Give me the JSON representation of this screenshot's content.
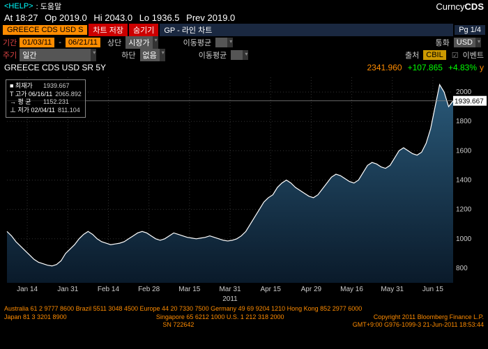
{
  "help": {
    "link": "<HELP>",
    "text": ": 도움말"
  },
  "brand": {
    "pre": "Curncy",
    "bold": "CDS"
  },
  "ohlc": {
    "time": "At 18:27",
    "op": "Op 2019.0",
    "hi": "Hi 2043.0",
    "lo": "Lo 1936.5",
    "prev": "Prev 2019.0"
  },
  "row3": {
    "ticker": "GREECE CDS USD S",
    "save": "차트 저장",
    "hide": "숨기기",
    "gp": "GP - 라인 차트",
    "pg": "Pg 1/4"
  },
  "f1": {
    "l1": "기간",
    "d1": "01/03/11",
    "d2": "06/21/11",
    "l2": "상단",
    "v2": "시장가",
    "l3": "이동평균",
    "l4": "통화",
    "v4": "USD"
  },
  "f2": {
    "l1": "주기",
    "v1": "일간",
    "l2": "하단",
    "v2": "없음",
    "l3": "이동평균",
    "l4": "출처",
    "v4": "CBIL",
    "ev": "이벤트"
  },
  "title": {
    "name": "GREECE CDS USD SR 5Y",
    "price": "2341.960",
    "chg": "+107.865",
    "pct": "+4.83%",
    "sfx": "y"
  },
  "legend": {
    "r1a": "■ 최재가",
    "r1b": "1939.667",
    "r2a": "T 고가 06/16/11",
    "r2b": "2065.892",
    "r3a": "→ 평     균",
    "r3b": "1152.231",
    "r4a": "⊥ 저가 02/04/11",
    "r4b": "811.104"
  },
  "chart": {
    "bg": "#000000",
    "grid": "#333333",
    "line": "#ffffff",
    "fill_top": "#2a5a7a",
    "fill_bottom": "#0a1a2a",
    "track_line": "#888888",
    "x_labels": [
      "Jan 14",
      "Jan 31",
      "Feb 14",
      "Feb 28",
      "Mar 15",
      "Mar 31",
      "Apr 15",
      "Apr 29",
      "May 16",
      "May 31",
      "Jun 15"
    ],
    "x_year": "2011",
    "y_labels": [
      "800",
      "1000",
      "1200",
      "1400",
      "1600",
      "1800",
      "2000"
    ],
    "y_min": 700,
    "y_max": 2100,
    "track_label": "1939.667",
    "data": [
      1050,
      1020,
      980,
      950,
      920,
      890,
      860,
      840,
      830,
      820,
      815,
      825,
      850,
      900,
      930,
      960,
      1000,
      1030,
      1050,
      1030,
      1000,
      980,
      970,
      960,
      965,
      970,
      980,
      1000,
      1020,
      1040,
      1050,
      1040,
      1020,
      1000,
      990,
      1000,
      1020,
      1040,
      1030,
      1020,
      1010,
      1005,
      1000,
      1005,
      1010,
      1020,
      1010,
      1000,
      990,
      985,
      990,
      1000,
      1020,
      1050,
      1100,
      1150,
      1200,
      1250,
      1280,
      1300,
      1350,
      1380,
      1400,
      1380,
      1350,
      1330,
      1310,
      1290,
      1280,
      1300,
      1340,
      1380,
      1420,
      1440,
      1430,
      1410,
      1390,
      1380,
      1400,
      1450,
      1500,
      1520,
      1510,
      1490,
      1480,
      1500,
      1550,
      1600,
      1620,
      1600,
      1580,
      1570,
      1590,
      1650,
      1750,
      1900,
      2050,
      2000,
      1900,
      1940
    ]
  },
  "footer": {
    "l1": "Australia 61 2 9777 8600 Brazil 5511 3048 4500 Europe 44 20 7330 7500 Germany 49 69 9204 1210 Hong Kong 852 2977 6000",
    "l2a": "Japan 81 3 3201 8900",
    "l2b": "Singapore 65 6212 1000    U.S. 1 212 318 2000",
    "l2c": "Copyright 2011 Bloomberg Finance L.P.",
    "l3a": "SN 722642",
    "l3b": "GMT+9:00 G976-1099-3 21-Jun-2011 18:53:44"
  }
}
